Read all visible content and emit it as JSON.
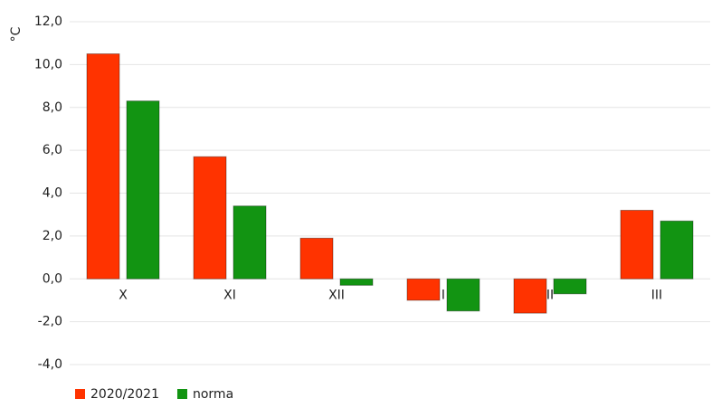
{
  "chart_data": {
    "type": "bar",
    "y_label": "°C",
    "categories": [
      "X",
      "XI",
      "XII",
      "I",
      "II",
      "III"
    ],
    "series": [
      {
        "name": "2020/2021",
        "color": "#ff3300",
        "values": [
          10.5,
          5.7,
          1.9,
          -1.0,
          -1.6,
          3.2
        ]
      },
      {
        "name": "norma",
        "color": "#129412",
        "values": [
          8.3,
          3.4,
          -0.3,
          -1.5,
          -0.7,
          2.7
        ]
      }
    ],
    "ylim": [
      -4,
      12
    ],
    "yticks": [
      {
        "value": -4,
        "label": "-4,0"
      },
      {
        "value": -2,
        "label": "-2,0"
      },
      {
        "value": 0,
        "label": "0,0"
      },
      {
        "value": 2,
        "label": "2,0"
      },
      {
        "value": 4,
        "label": "4,0"
      },
      {
        "value": 6,
        "label": "6,0"
      },
      {
        "value": 8,
        "label": "8,0"
      },
      {
        "value": 10,
        "label": "10,0"
      },
      {
        "value": 12,
        "label": "12,0"
      }
    ],
    "grid": true,
    "legend": "bottom-left"
  }
}
